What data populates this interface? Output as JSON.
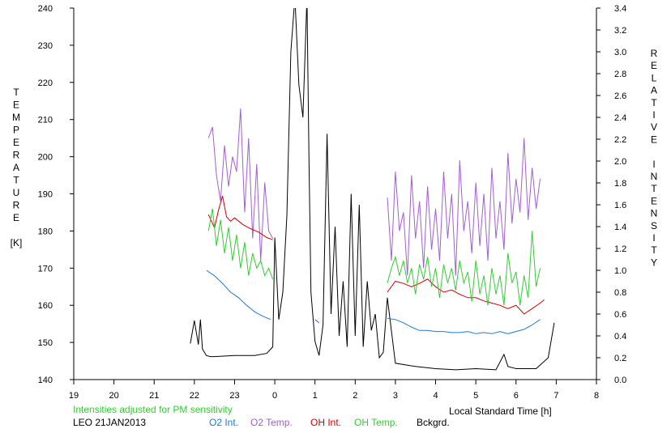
{
  "chart_data": {
    "type": "line",
    "title": "",
    "xlabel": "Local Standard Time [h]",
    "ylabel_left": "TEMPERATURE [K]",
    "ylabel_left_letters": [
      "T",
      "E",
      "M",
      "P",
      "E",
      "R",
      "A",
      "T",
      "U",
      "R",
      "E",
      "",
      "[K]"
    ],
    "ylabel_right": "RELATIVE INTENSITY",
    "ylabel_right_letters": [
      "R",
      "E",
      "L",
      "A",
      "T",
      "I",
      "V",
      "E",
      "",
      "I",
      "N",
      "T",
      "E",
      "N",
      "S",
      "I",
      "T",
      "Y"
    ],
    "x_ticks": [
      "19",
      "20",
      "21",
      "22",
      "23",
      "0",
      "1",
      "2",
      "3",
      "4",
      "5",
      "6",
      "7",
      "8"
    ],
    "xlim": [
      19,
      32
    ],
    "ylim_left": [
      140,
      240
    ],
    "ylim_right": [
      0,
      3.4
    ],
    "yticks_left": [
      "140",
      "150",
      "160",
      "170",
      "180",
      "190",
      "200",
      "210",
      "220",
      "230",
      "240"
    ],
    "yticks_right": [
      "0.0",
      "0.2",
      "0.4",
      "0.6",
      "0.8",
      "1.0",
      "1.2",
      "1.4",
      "1.6",
      "1.8",
      "2.0",
      "2.2",
      "2.4",
      "2.6",
      "2.8",
      "3.0",
      "3.2",
      "3.4"
    ],
    "note": "Intensities adjusted for PM sensitivity",
    "site_date": "LEO 21JAN2013",
    "legend": [
      {
        "label": "O2 Int.",
        "color": "#1f78d6"
      },
      {
        "label": "O2 Temp.",
        "color": "#a25ed6"
      },
      {
        "label": "OH Int.",
        "color": "#d40000"
      },
      {
        "label": "OH Temp.",
        "color": "#33cc33"
      },
      {
        "label": "Bckgrd.",
        "color": "#000000"
      }
    ],
    "series": [
      {
        "name": "Bckgrd.",
        "axis": "right",
        "color": "#000000",
        "x": [
          21.9,
          22.0,
          22.1,
          22.15,
          22.2,
          22.3,
          22.4,
          22.5,
          23.0,
          23.5,
          23.8,
          23.95,
          24.0,
          24.1,
          24.2,
          24.3,
          24.4,
          24.5,
          24.6,
          24.7,
          24.8,
          24.85,
          24.9,
          25.0,
          25.1,
          25.2,
          25.3,
          25.4,
          25.5,
          25.6,
          25.7,
          25.8,
          25.9,
          26.0,
          26.1,
          26.2,
          26.3,
          26.4,
          26.5,
          26.6,
          26.7,
          26.8,
          27.0,
          27.5,
          28.0,
          28.5,
          29.0,
          29.5,
          29.7,
          29.8,
          30.0,
          30.5,
          30.8,
          30.95
        ],
        "y": [
          0.33,
          0.54,
          0.32,
          0.55,
          0.28,
          0.22,
          0.21,
          0.21,
          0.22,
          0.22,
          0.24,
          0.3,
          1.3,
          0.55,
          0.8,
          1.5,
          3.0,
          3.5,
          2.7,
          2.4,
          3.5,
          2.0,
          0.8,
          0.35,
          0.22,
          0.5,
          2.25,
          0.6,
          1.4,
          0.4,
          0.9,
          0.3,
          1.7,
          0.4,
          1.6,
          0.3,
          0.9,
          0.45,
          0.6,
          0.2,
          0.25,
          0.75,
          0.15,
          0.12,
          0.1,
          0.09,
          0.1,
          0.09,
          0.23,
          0.12,
          0.1,
          0.1,
          0.2,
          0.52
        ]
      },
      {
        "name": "O2 Int.",
        "axis": "right",
        "color": "#1f78d6",
        "x": [
          22.3,
          22.5,
          22.7,
          22.9,
          23.1,
          23.3,
          23.5,
          23.7,
          23.9,
          25.0,
          25.1,
          26.8,
          27.0,
          27.2,
          27.4,
          27.6,
          27.8,
          28.0,
          28.2,
          28.4,
          28.6,
          28.8,
          29.0,
          29.2,
          29.4,
          29.6,
          29.8,
          30.0,
          30.2,
          30.4,
          30.6
        ],
        "y": [
          1.0,
          0.95,
          0.88,
          0.8,
          0.75,
          0.68,
          0.62,
          0.58,
          0.55,
          0.55,
          0.52,
          0.56,
          0.55,
          0.52,
          0.48,
          0.45,
          0.45,
          0.44,
          0.44,
          0.43,
          0.43,
          0.44,
          0.42,
          0.43,
          0.42,
          0.44,
          0.42,
          0.44,
          0.46,
          0.5,
          0.55
        ]
      },
      {
        "name": "O2 Temp.",
        "axis": "left",
        "color": "#a25ed6",
        "x": [
          22.35,
          22.45,
          22.55,
          22.65,
          22.75,
          22.85,
          22.95,
          23.05,
          23.15,
          23.25,
          23.35,
          23.45,
          23.55,
          23.65,
          23.75,
          23.85,
          23.95,
          26.8,
          26.9,
          27.0,
          27.1,
          27.2,
          27.3,
          27.4,
          27.5,
          27.6,
          27.7,
          27.8,
          27.9,
          28.0,
          28.1,
          28.2,
          28.3,
          28.4,
          28.5,
          28.6,
          28.7,
          28.8,
          28.9,
          29.0,
          29.1,
          29.2,
          29.3,
          29.4,
          29.5,
          29.6,
          29.7,
          29.8,
          29.9,
          30.0,
          30.1,
          30.2,
          30.3,
          30.4,
          30.5,
          30.6
        ],
        "y": [
          205,
          208,
          195,
          188,
          203,
          192,
          200,
          196,
          213,
          185,
          205,
          178,
          198,
          172,
          193,
          180,
          178,
          189,
          172,
          196,
          180,
          185,
          168,
          195,
          178,
          188,
          170,
          192,
          175,
          186,
          172,
          196,
          178,
          190,
          168,
          199,
          180,
          188,
          174,
          193,
          176,
          190,
          172,
          197,
          178,
          188,
          175,
          201,
          182,
          194,
          185,
          205,
          183,
          197,
          186,
          194
        ]
      },
      {
        "name": "OH Int.",
        "axis": "right",
        "color": "#d40000",
        "x": [
          22.35,
          22.5,
          22.6,
          22.7,
          22.8,
          22.9,
          23.0,
          23.2,
          23.4,
          23.6,
          23.8,
          23.95,
          26.8,
          27.0,
          27.2,
          27.4,
          27.6,
          27.8,
          28.0,
          28.2,
          28.4,
          28.6,
          28.8,
          29.0,
          29.2,
          29.4,
          29.6,
          29.8,
          30.0,
          30.2,
          30.4,
          30.6,
          30.7
        ],
        "y": [
          1.51,
          1.39,
          1.55,
          1.68,
          1.49,
          1.45,
          1.48,
          1.42,
          1.38,
          1.35,
          1.3,
          1.28,
          0.8,
          0.9,
          0.88,
          0.85,
          0.88,
          0.92,
          0.85,
          0.8,
          0.82,
          0.78,
          0.75,
          0.75,
          0.72,
          0.7,
          0.68,
          0.65,
          0.68,
          0.6,
          0.65,
          0.7,
          0.73
        ]
      },
      {
        "name": "OH Temp.",
        "axis": "left",
        "color": "#33cc33",
        "x": [
          22.35,
          22.45,
          22.55,
          22.65,
          22.75,
          22.85,
          22.95,
          23.05,
          23.15,
          23.25,
          23.35,
          23.45,
          23.55,
          23.65,
          23.75,
          23.85,
          23.95,
          26.8,
          26.9,
          27.0,
          27.1,
          27.2,
          27.3,
          27.4,
          27.5,
          27.6,
          27.7,
          27.8,
          27.9,
          28.0,
          28.1,
          28.2,
          28.3,
          28.4,
          28.5,
          28.6,
          28.7,
          28.8,
          28.9,
          29.0,
          29.1,
          29.2,
          29.3,
          29.4,
          29.5,
          29.6,
          29.7,
          29.8,
          29.9,
          30.0,
          30.1,
          30.2,
          30.3,
          30.4,
          30.5,
          30.6
        ],
        "y": [
          180,
          186,
          176,
          183,
          174,
          181,
          172,
          179,
          170,
          177,
          168,
          174,
          170,
          172,
          168,
          170,
          167,
          166,
          170,
          173,
          168,
          172,
          166,
          170,
          163,
          171,
          167,
          173,
          165,
          170,
          162,
          171,
          166,
          170,
          164,
          172,
          166,
          169,
          161,
          172,
          163,
          168,
          160,
          170,
          163,
          168,
          160,
          174,
          166,
          169,
          160,
          168,
          162,
          180,
          165,
          170
        ]
      }
    ]
  }
}
